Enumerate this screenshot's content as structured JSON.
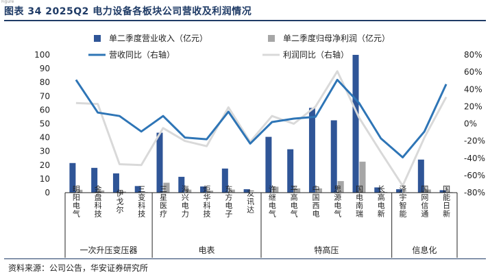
{
  "header": {
    "small_text": "Figure",
    "title": "图表 34  2025Q2 电力设备各板块公司营收及利润情况"
  },
  "footer": {
    "source": "资料来源：公司公告，华安证券研究所"
  },
  "chart_data": {
    "type": "bar",
    "categories": [
      "明阳电气",
      "金盘科技",
      "伊戈尔",
      "三变科技",
      "三星医疗",
      "海兴电力",
      "炬华科技",
      "东方电子",
      "友讯达",
      "许继电气",
      "平高电气",
      "中国西电",
      "思源电气",
      "国电南瑞",
      "长高电新",
      "泽宇智能",
      "国网信通",
      "国能日新"
    ],
    "groups": [
      {
        "label": "一次升压变压器",
        "start": 0,
        "end": 3
      },
      {
        "label": "电表",
        "start": 4,
        "end": 8
      },
      {
        "label": "特高压",
        "start": 9,
        "end": 14
      },
      {
        "label": "信息化",
        "start": 15,
        "end": 17
      }
    ],
    "series": [
      {
        "name": "单二季度营业收入（亿元）",
        "type": "bar",
        "axis": "left",
        "color": "#2f5597",
        "values": [
          21.5,
          18,
          14,
          4.8,
          43.5,
          11.5,
          4.5,
          17.5,
          2.5,
          40.5,
          31.5,
          61.5,
          52.5,
          100,
          3.8,
          2.5,
          24,
          1.8
        ]
      },
      {
        "name": "单二季度归母净利润（亿元）",
        "type": "bar",
        "axis": "left",
        "color": "#a6a6a6",
        "values": [
          2.1,
          1.6,
          0.8,
          0.4,
          7.2,
          2.2,
          1.5,
          2.2,
          0.3,
          4.3,
          3.1,
          3.1,
          8.4,
          22.5,
          0.5,
          0.3,
          2.3,
          0.4
        ]
      },
      {
        "name": "营收同比（右轴）",
        "type": "line",
        "axis": "right",
        "color": "#2e75b6",
        "values": [
          51,
          13,
          9,
          -9,
          9,
          -16,
          -18,
          14,
          -23,
          2,
          6,
          8,
          51,
          24,
          -17,
          -39,
          -9,
          46
        ]
      },
      {
        "name": "利润同比（右轴）",
        "type": "line",
        "axis": "right",
        "color": "#d9d9d9",
        "values": [
          24,
          23,
          -47,
          -48,
          -5,
          -20,
          -26,
          19,
          -21,
          9,
          0,
          20,
          61,
          7,
          -33,
          -72,
          -16,
          31
        ]
      }
    ],
    "y_left": {
      "min": 0,
      "max": 100,
      "ticks": [
        "0",
        "10",
        "20",
        "30",
        "40",
        "50",
        "60",
        "70",
        "80",
        "90",
        "100"
      ]
    },
    "y_right": {
      "min": -80,
      "max": 80,
      "ticks": [
        "-80%",
        "-60%",
        "-40%",
        "-20%",
        "0%",
        "20%",
        "40%",
        "60%",
        "80%"
      ]
    },
    "legend_position": "top",
    "grid": false
  }
}
